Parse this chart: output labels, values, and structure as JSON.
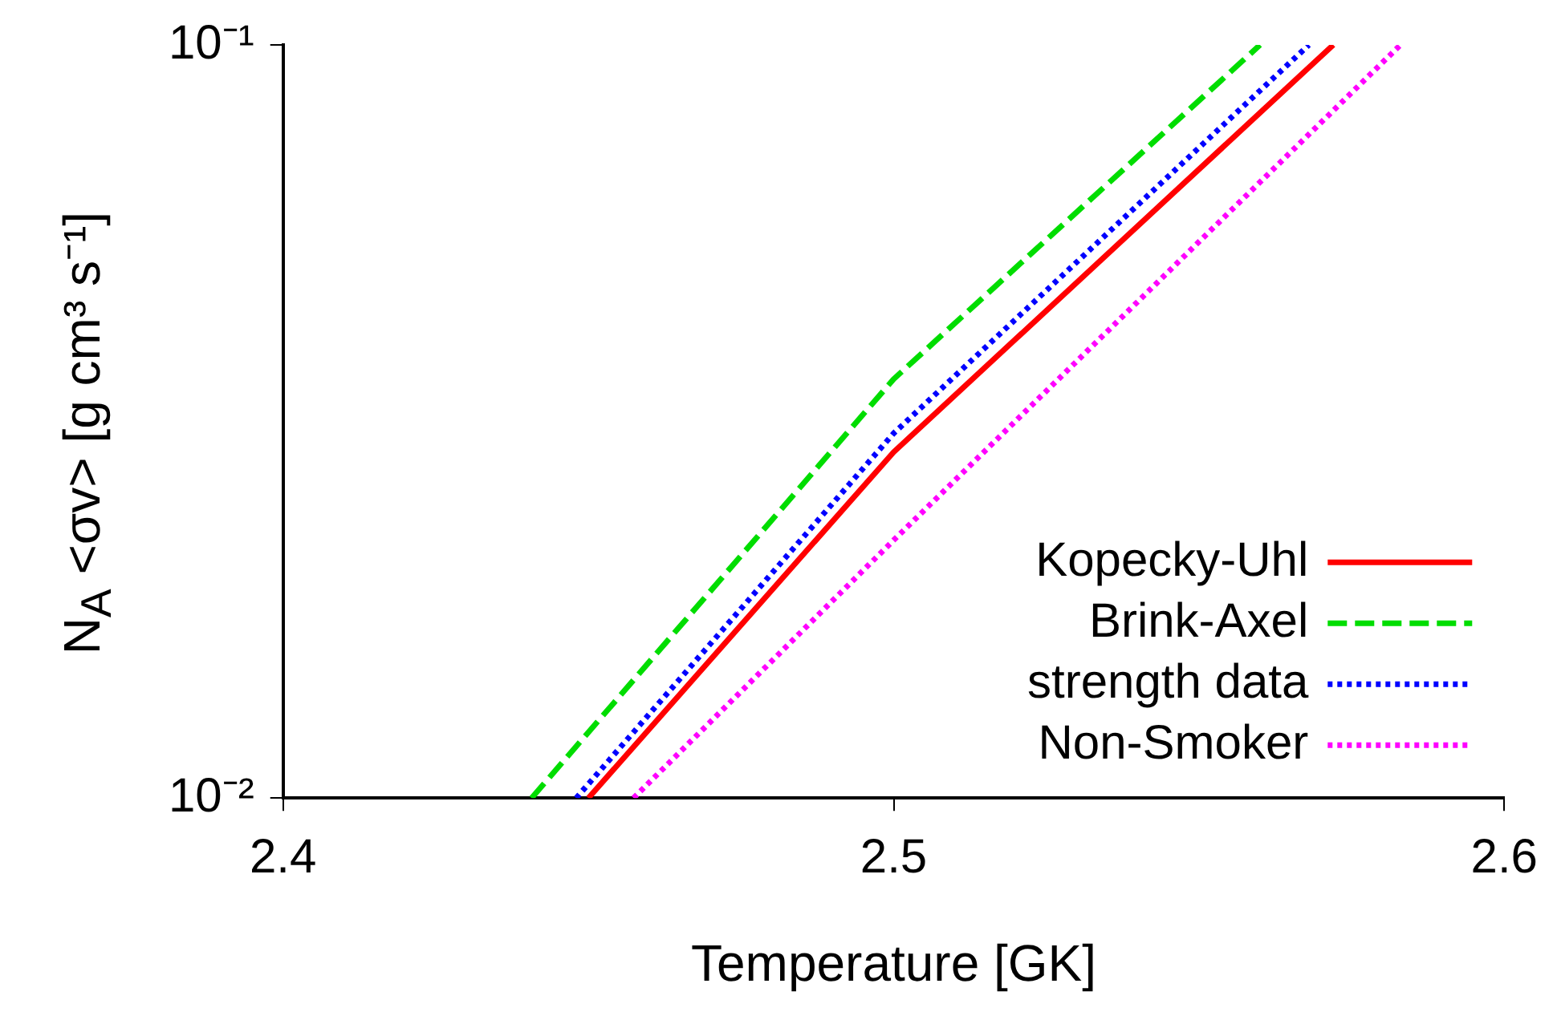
{
  "chart_data": {
    "type": "line",
    "xlabel": "Temperature [GK]",
    "ylabel": "N$_{A}$ <σv> [g cm³ s⁻¹]",
    "xlim": [
      2.4,
      2.6
    ],
    "xticks": [
      2.4,
      2.5,
      2.6
    ],
    "ylim": [
      0.01,
      0.1
    ],
    "yticks": [
      {
        "value": 0.01,
        "label": "10⁻²"
      },
      {
        "value": 0.1,
        "label": "10⁻¹"
      }
    ],
    "log": "y",
    "grid": false,
    "legend": "bottom right",
    "marker": "none",
    "series": [
      {
        "name": "Kopecky-Uhl",
        "color": "#ff0000",
        "line_style": "solid",
        "x": [
          2.45,
          2.5,
          2.572
        ],
        "values": [
          0.01,
          0.0288,
          0.1
        ]
      },
      {
        "name": "Brink-Axel",
        "color": "#00dd00",
        "line_style": "dashed",
        "x": [
          2.4407,
          2.5,
          2.56
        ],
        "values": [
          0.01,
          0.036,
          0.1
        ]
      },
      {
        "name": "strength data",
        "color": "#0000ff",
        "line_style": "dotted",
        "x": [
          2.448,
          2.5,
          2.568
        ],
        "values": [
          0.01,
          0.0305,
          0.1
        ]
      },
      {
        "name": "Non-Smoker",
        "color": "#ff00ff",
        "line_style": "dotted",
        "x": [
          2.4574,
          2.5,
          2.583
        ],
        "values": [
          0.01,
          0.022,
          0.1
        ]
      }
    ]
  }
}
